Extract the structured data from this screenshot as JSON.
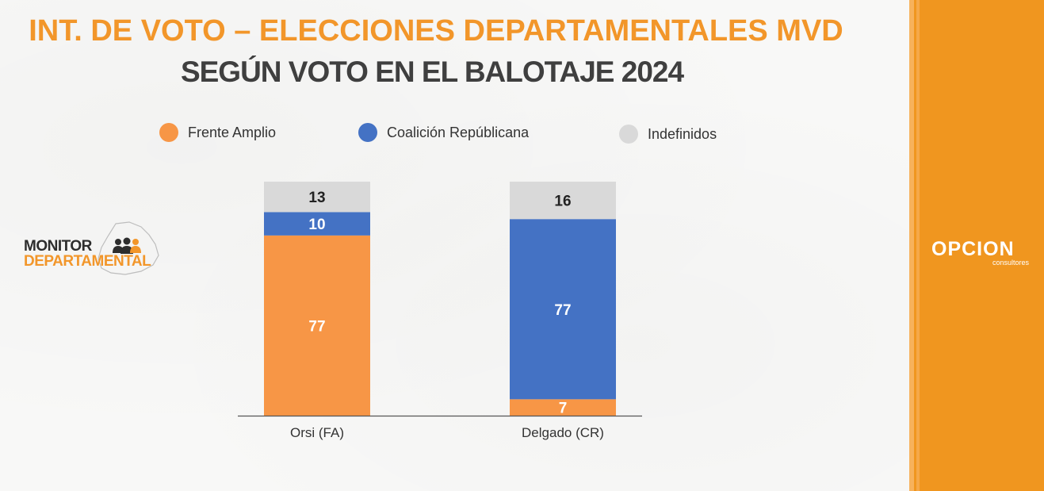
{
  "title": "INT. DE VOTO – ELECCIONES DEPARTAMENTALES MVD",
  "subtitle": "SEGÚN VOTO EN EL BALOTAJE 2024",
  "colors": {
    "title": "#f2962a",
    "subtitle": "#3f3f3f",
    "frente_amplio": "#f79646",
    "coalicion": "#4472c4",
    "indefinidos": "#d9d9d9",
    "panel": "#f0961f"
  },
  "logo_left": {
    "line1": "MONITOR",
    "line2": "DEPARTAMENTAL"
  },
  "brand": {
    "name": "OPCION",
    "sub": "consultores"
  },
  "chart_data": {
    "type": "bar",
    "stacked": true,
    "categories": [
      "Orsi (FA)",
      "Delgado (CR)"
    ],
    "series": [
      {
        "name": "Frente Amplio",
        "color": "#f79646",
        "values": [
          77,
          7
        ]
      },
      {
        "name": "Coalición Repúblicana",
        "color": "#4472c4",
        "values": [
          10,
          77
        ]
      },
      {
        "name": "Indefinidos",
        "color": "#d9d9d9",
        "values": [
          13,
          16
        ]
      }
    ],
    "ylim": [
      0,
      100
    ],
    "legend_position": "top",
    "grid": false,
    "data_labels": true
  }
}
